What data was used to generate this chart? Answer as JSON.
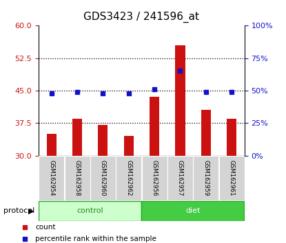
{
  "title": "GDS3423 / 241596_at",
  "samples": [
    "GSM162954",
    "GSM162958",
    "GSM162960",
    "GSM162962",
    "GSM162956",
    "GSM162957",
    "GSM162959",
    "GSM162961"
  ],
  "bar_values": [
    35.0,
    38.5,
    37.0,
    34.5,
    43.5,
    55.5,
    40.5,
    38.5
  ],
  "dot_values_right": [
    48,
    49,
    48,
    48,
    51,
    65,
    49,
    49
  ],
  "left_ylim": [
    30,
    60
  ],
  "left_yticks": [
    30,
    37.5,
    45,
    52.5,
    60
  ],
  "right_ylim": [
    0,
    100
  ],
  "right_yticks": [
    0,
    25,
    50,
    75,
    100
  ],
  "bar_color": "#cc1111",
  "dot_color": "#1111cc",
  "bar_bottom": 30,
  "control_bg_color": "#ccffcc",
  "diet_bg_color": "#44cc44",
  "group_border_color": "#22aa22",
  "group_text_color_control": "#228822",
  "protocol_label": "protocol",
  "control_label": "control",
  "diet_label": "diet",
  "legend_bar_label": "count",
  "legend_dot_label": "percentile rank within the sample",
  "title_fontsize": 11,
  "tick_fontsize": 8,
  "axis_label_color_left": "#cc1111",
  "axis_label_color_right": "#1111cc"
}
